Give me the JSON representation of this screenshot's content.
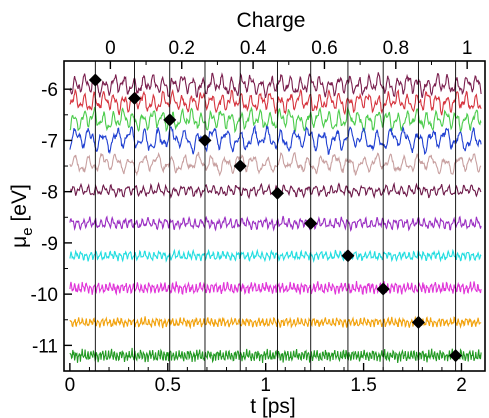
{
  "chart_data": {
    "type": "line",
    "xlabel": "t [ps]",
    "ylabel_main": "μ",
    "ylabel_sub": "e",
    "ylabel_unit": " [eV]",
    "top_axis_label": "Charge",
    "xlim": [
      -0.03,
      2.12
    ],
    "ylim": [
      -11.5,
      -5.45
    ],
    "x_ticks": [
      0,
      0.5,
      1,
      1.5,
      2
    ],
    "x_tick_labels": [
      "0",
      "0.5",
      "1",
      "1.5",
      "2"
    ],
    "y_ticks": [
      -6,
      -7,
      -8,
      -9,
      -10,
      -11
    ],
    "y_tick_labels": [
      "-6",
      "-7",
      "-8",
      "-9",
      "-10",
      "-11"
    ],
    "top_ticks": [
      0,
      0.2,
      0.4,
      0.6,
      0.8,
      1
    ],
    "top_tick_labels": [
      "0",
      "0.2",
      "0.4",
      "0.6",
      "0.8",
      "1"
    ],
    "top_axis_xlim": [
      -0.13,
      1.05
    ],
    "grid": false,
    "series": [
      {
        "charge": 0.0,
        "mean": -5.92,
        "amplitude": 0.22,
        "period_ps": 0.05,
        "color": "#7a1f4e",
        "t_start": 0.13,
        "marker": [
          0.13,
          -5.82
        ]
      },
      {
        "charge": 0.1,
        "mean": -6.25,
        "amplitude": 0.22,
        "period_ps": 0.05,
        "color": "#d6343e",
        "t_start": 0.33,
        "marker": [
          0.33,
          -6.18
        ]
      },
      {
        "charge": 0.2,
        "mean": -6.6,
        "amplitude": 0.22,
        "period_ps": 0.05,
        "color": "#4ccc4c",
        "t_start": 0.51,
        "marker": [
          0.51,
          -6.6
        ]
      },
      {
        "charge": 0.3,
        "mean": -6.98,
        "amplitude": 0.25,
        "period_ps": 0.07,
        "color": "#1f3fd1",
        "t_start": 0.69,
        "marker": [
          0.69,
          -7.0
        ]
      },
      {
        "charge": 0.4,
        "mean": -7.45,
        "amplitude": 0.2,
        "period_ps": 0.07,
        "color": "#c8a0a0",
        "t_start": 0.87,
        "marker": [
          0.87,
          -7.5
        ]
      },
      {
        "charge": 0.5,
        "mean": -7.98,
        "amplitude": 0.12,
        "period_ps": 0.04,
        "color": "#6e1a4a",
        "t_start": 1.06,
        "marker": [
          1.06,
          -8.03
        ]
      },
      {
        "charge": 0.6,
        "mean": -8.62,
        "amplitude": 0.12,
        "period_ps": 0.03,
        "color": "#9a2ec2",
        "t_start": 1.23,
        "marker": [
          1.23,
          -8.62
        ]
      },
      {
        "charge": 0.7,
        "mean": -9.25,
        "amplitude": 0.1,
        "period_ps": 0.025,
        "color": "#22dde0",
        "t_start": 1.42,
        "marker": [
          1.42,
          -9.25
        ]
      },
      {
        "charge": 0.8,
        "mean": -9.88,
        "amplitude": 0.12,
        "period_ps": 0.02,
        "color": "#e034d8",
        "t_start": 1.6,
        "marker": [
          1.6,
          -9.9
        ]
      },
      {
        "charge": 0.9,
        "mean": -10.55,
        "amplitude": 0.1,
        "period_ps": 0.02,
        "color": "#f2a20c",
        "t_start": 1.78,
        "marker": [
          1.78,
          -10.55
        ]
      },
      {
        "charge": 1.0,
        "mean": -11.2,
        "amplitude": 0.13,
        "period_ps": 0.015,
        "color": "#229922",
        "t_start": 1.97,
        "marker": [
          1.97,
          -11.2
        ]
      }
    ]
  }
}
